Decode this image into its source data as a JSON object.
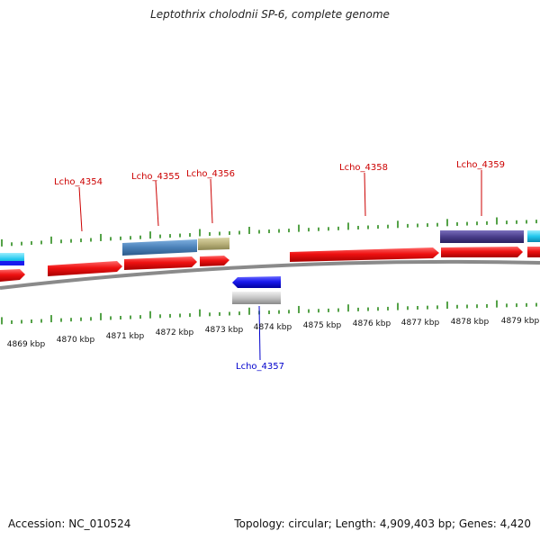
{
  "title": "Leptothrix cholodnii SP-6, complete genome",
  "footer": {
    "accession": "Accession: NC_010524",
    "summary": "Topology: circular; Length: 4,909,403 bp; Genes: 4,420"
  },
  "diagram": {
    "axis_ticks": [
      {
        "label": "4869 kbp"
      },
      {
        "label": "4870 kbp"
      },
      {
        "label": "4871 kbp"
      },
      {
        "label": "4872 kbp"
      },
      {
        "label": "4873 kbp"
      },
      {
        "label": "4874 kbp"
      },
      {
        "label": "4875 kbp"
      },
      {
        "label": "4876 kbp"
      },
      {
        "label": "4877 kbp"
      },
      {
        "label": "4878 kbp"
      },
      {
        "label": "4879 kbp"
      }
    ],
    "gene_labels": [
      {
        "text": "Lcho_4354",
        "color": "#cc0000"
      },
      {
        "text": "Lcho_4355",
        "color": "#cc0000"
      },
      {
        "text": "Lcho_4356",
        "color": "#cc0000"
      },
      {
        "text": "Lcho_4357",
        "color": "#0000cc"
      },
      {
        "text": "Lcho_4358",
        "color": "#cc0000"
      },
      {
        "text": "Lcho_4359",
        "color": "#cc0000"
      }
    ],
    "colors": {
      "cds": "#ee1111",
      "backbone": "#8a8a8a",
      "tick": "#2a8a1a",
      "reverse_gene": "#1a1aee",
      "feature_blue": "#4a80b8",
      "feature_olive": "#b8b07a",
      "feature_navy": "#4a3e8a",
      "feature_cyan": "#22c8ee",
      "feature_grey": "#c4c4c4"
    }
  }
}
